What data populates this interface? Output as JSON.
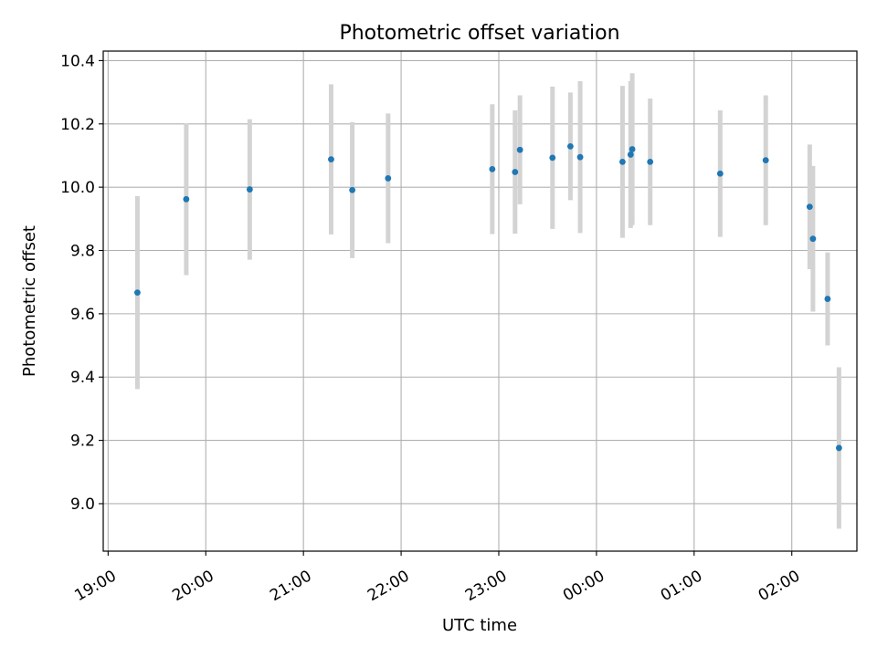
{
  "chart_data": {
    "type": "scatter",
    "title": "Photometric offset variation",
    "xlabel": "UTC time",
    "ylabel": "Photometric offset",
    "x_axis": {
      "kind": "time",
      "ticks": [
        {
          "label": "19:00",
          "time": "19:00"
        },
        {
          "label": "20:00",
          "time": "20:00"
        },
        {
          "label": "21:00",
          "time": "21:00"
        },
        {
          "label": "22:00",
          "time": "22:00"
        },
        {
          "label": "23:00",
          "time": "23:00"
        },
        {
          "label": "00:00",
          "time": "00:00"
        },
        {
          "label": "01:00",
          "time": "01:00"
        },
        {
          "label": "02:00",
          "time": "02:00"
        }
      ]
    },
    "y_axis": {
      "ylim": [
        8.85,
        10.43
      ],
      "ticks": [
        "9.0",
        "9.2",
        "9.4",
        "9.6",
        "9.8",
        "10.0",
        "10.2",
        "10.4"
      ]
    },
    "grid": true,
    "colors": {
      "point": "#1f77b4",
      "errorbar": "#d3d3d3",
      "grid": "#b0b0b0"
    },
    "points": [
      {
        "time": "19:18",
        "y": 9.667,
        "err": 0.305
      },
      {
        "time": "19:48",
        "y": 9.962,
        "err": 0.24
      },
      {
        "time": "20:27",
        "y": 9.993,
        "err": 0.222
      },
      {
        "time": "21:17",
        "y": 10.088,
        "err": 0.237
      },
      {
        "time": "21:30",
        "y": 9.991,
        "err": 0.215
      },
      {
        "time": "21:52",
        "y": 10.028,
        "err": 0.205
      },
      {
        "time": "22:56",
        "y": 10.057,
        "err": 0.205
      },
      {
        "time": "23:10",
        "y": 10.048,
        "err": 0.195
      },
      {
        "time": "23:13",
        "y": 10.118,
        "err": 0.172
      },
      {
        "time": "23:33",
        "y": 10.093,
        "err": 0.225
      },
      {
        "time": "23:44",
        "y": 10.129,
        "err": 0.17
      },
      {
        "time": "23:50",
        "y": 10.095,
        "err": 0.24
      },
      {
        "time": "00:16",
        "y": 10.08,
        "err": 0.24
      },
      {
        "time": "00:21",
        "y": 10.103,
        "err": 0.232
      },
      {
        "time": "00:22",
        "y": 10.12,
        "err": 0.24
      },
      {
        "time": "00:33",
        "y": 10.08,
        "err": 0.2
      },
      {
        "time": "01:16",
        "y": 10.043,
        "err": 0.2
      },
      {
        "time": "01:44",
        "y": 10.085,
        "err": 0.205
      },
      {
        "time": "02:11",
        "y": 9.938,
        "err": 0.197
      },
      {
        "time": "02:13",
        "y": 9.837,
        "err": 0.23
      },
      {
        "time": "02:22",
        "y": 9.647,
        "err": 0.147
      },
      {
        "time": "02:29",
        "y": 9.176,
        "err": 0.255
      }
    ]
  }
}
